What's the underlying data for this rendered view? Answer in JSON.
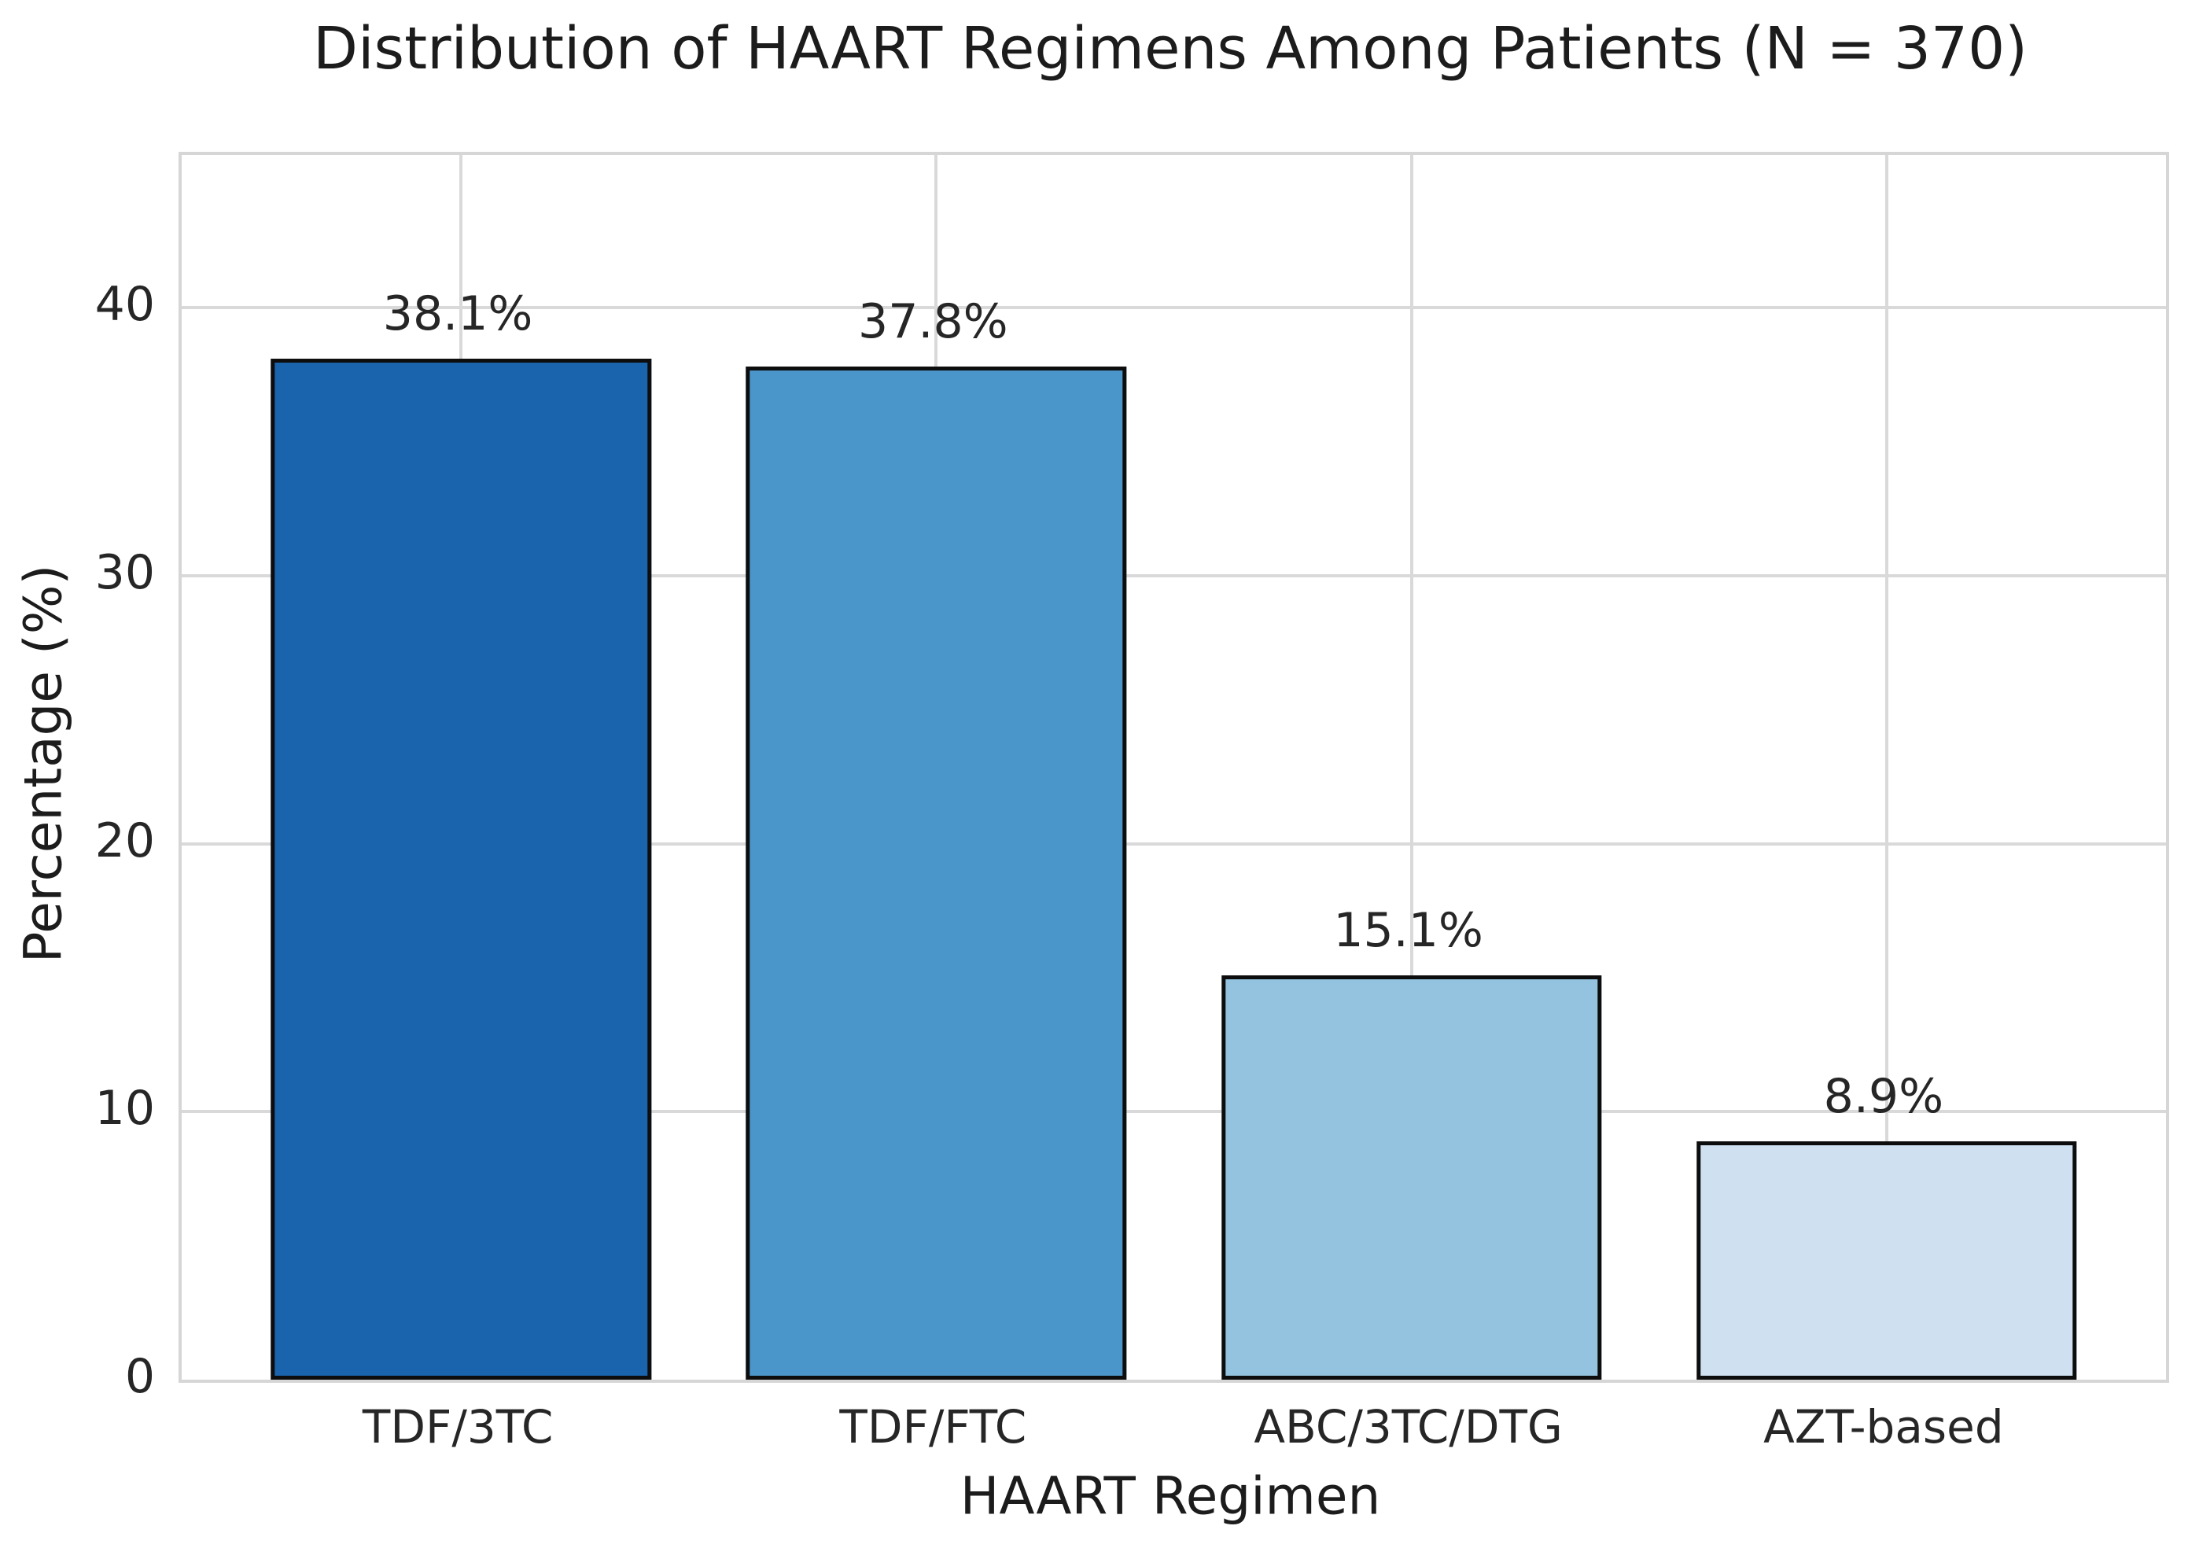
{
  "chart_data": {
    "type": "bar",
    "title": "Distribution of HAART Regimens Among Patients (N = 370)",
    "xlabel": "HAART Regimen",
    "ylabel": "Percentage (%)",
    "categories": [
      "TDF/3TC",
      "TDF/FTC",
      "ABC/3TC/DTG",
      "AZT-based"
    ],
    "values": [
      38.1,
      37.8,
      15.1,
      8.9
    ],
    "bar_labels": [
      "38.1%",
      "37.8%",
      "15.1%",
      "8.9%"
    ],
    "bar_colors": [
      "#1a63ad",
      "#4a96cb",
      "#93c3df",
      "#cfe0f1"
    ],
    "bar_edge_color": "#0d0d0d",
    "yticks": [
      0,
      10,
      20,
      30,
      40
    ],
    "ylim": [
      0,
      45.7
    ],
    "grid": true,
    "grid_color": "#d9d9d9",
    "background_color": "#ffffff",
    "text_color": "#262626",
    "legend_position": "none"
  }
}
